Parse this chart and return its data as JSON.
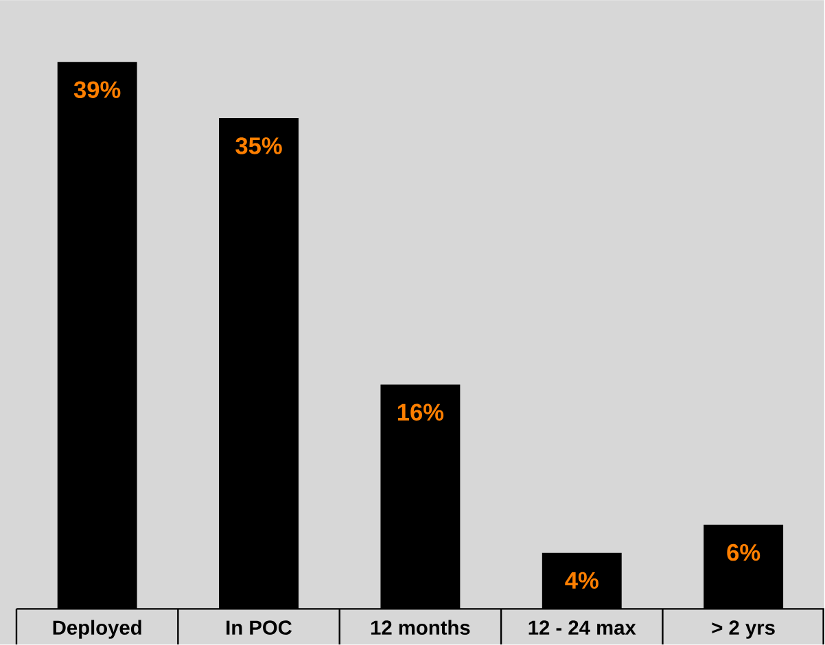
{
  "chart_data": {
    "type": "bar",
    "categories": [
      "Deployed",
      "In POC",
      "12 months",
      "12 - 24 max",
      "> 2 yrs"
    ],
    "values": [
      39,
      35,
      16,
      4,
      6
    ],
    "value_labels": [
      "39%",
      "35%",
      "16%",
      "4%",
      "6%"
    ],
    "color": "#000000"
  }
}
